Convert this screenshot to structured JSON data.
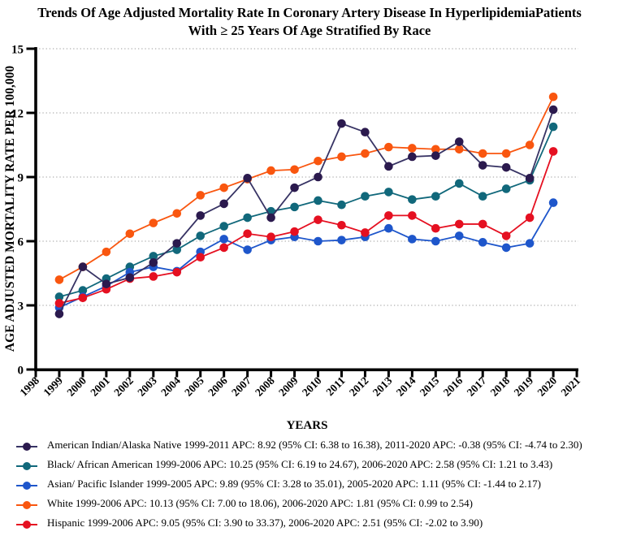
{
  "title": {
    "line1": "Trends Of Age Adjusted Mortality Rate In Coronary Artery Disease In HyperlipidemiaPatients",
    "line2": "With ≥ 25 Years Of Age Stratified By Race"
  },
  "axes": {
    "y_label": "AGE ADJUSTED MORTALITY RATE PER 100,000",
    "x_label": "YEARS",
    "y_ticks": [
      0,
      3,
      6,
      9,
      12,
      15
    ],
    "x_ticks": [
      1998,
      1999,
      2000,
      2001,
      2002,
      2003,
      2004,
      2005,
      2006,
      2007,
      2008,
      2009,
      2010,
      2011,
      2012,
      2013,
      2014,
      2015,
      2016,
      2017,
      2018,
      2019,
      2020,
      2021
    ]
  },
  "chart_data": {
    "type": "line",
    "title": "Trends Of Age Adjusted Mortality Rate In Coronary Artery Disease In HyperlipidemiaPatients With ≥ 25 Years Of Age Stratified By Race",
    "xlabel": "YEARS",
    "ylabel": "AGE ADJUSTED MORTALITY RATE PER 100,000",
    "ylim": [
      0,
      15
    ],
    "xlim": [
      1998,
      2021
    ],
    "gridlines": [
      3,
      6,
      9,
      12,
      15
    ],
    "grid": "dotted-horizontal",
    "legend_position": "bottom",
    "x": [
      1999,
      2000,
      2001,
      2002,
      2003,
      2004,
      2005,
      2006,
      2007,
      2008,
      2009,
      2010,
      2011,
      2012,
      2013,
      2014,
      2015,
      2016,
      2017,
      2018,
      2019,
      2020
    ],
    "z_order": [
      3,
      1,
      2,
      4,
      0
    ],
    "series": [
      {
        "id": "american-indian-alaska-native",
        "name": "American Indian/Alaska Native",
        "color": "#2b1a4e",
        "line_color": "#373364",
        "values": [
          2.6,
          4.8,
          4.0,
          4.3,
          5.0,
          5.9,
          7.2,
          7.75,
          8.95,
          7.1,
          8.5,
          9.0,
          11.5,
          11.1,
          9.5,
          9.95,
          10.0,
          10.65,
          9.55,
          9.45,
          8.95,
          12.15
        ]
      },
      {
        "id": "black-african-american",
        "name": "Black/ African American",
        "color": "#11687b",
        "line_color": "#11687b",
        "values": [
          3.4,
          3.7,
          4.25,
          4.8,
          5.3,
          5.6,
          6.25,
          6.7,
          7.1,
          7.4,
          7.6,
          7.9,
          7.7,
          8.1,
          8.3,
          7.95,
          8.1,
          8.7,
          8.1,
          8.45,
          8.85,
          11.35
        ]
      },
      {
        "id": "asian-pacific-islander",
        "name": "Asian/ Pacific Islander",
        "color": "#1e56cb",
        "line_color": "#1e56cb",
        "values": [
          2.9,
          3.4,
          3.9,
          4.55,
          4.8,
          4.6,
          5.5,
          6.1,
          5.6,
          6.05,
          6.2,
          6.0,
          6.05,
          6.2,
          6.6,
          6.1,
          6.0,
          6.25,
          5.95,
          5.7,
          5.9,
          7.8
        ]
      },
      {
        "id": "white",
        "name": "White",
        "color": "#f9560f",
        "line_color": "#f9560f",
        "values": [
          4.2,
          4.8,
          5.5,
          6.35,
          6.85,
          7.3,
          8.15,
          8.5,
          8.9,
          9.3,
          9.35,
          9.75,
          9.95,
          10.1,
          10.4,
          10.35,
          10.3,
          10.3,
          10.1,
          10.1,
          10.5,
          12.75
        ]
      },
      {
        "id": "hispanic",
        "name": "Hispanic",
        "color": "#e51021",
        "line_color": "#e51021",
        "values": [
          3.1,
          3.35,
          3.75,
          4.25,
          4.35,
          4.55,
          5.25,
          5.7,
          6.35,
          6.2,
          6.45,
          7.0,
          6.75,
          6.4,
          7.2,
          7.2,
          6.6,
          6.8,
          6.8,
          6.25,
          7.1,
          10.2
        ]
      }
    ]
  },
  "legend": {
    "items": [
      {
        "label": "American Indian/Alaska Native 1999-2011 APC: 8.92 (95% CI: 6.38 to 16.38), 2011-2020 APC: -0.38 (95% CI: -4.74 to 2.30)"
      },
      {
        "label": "Black/ African American 1999-2006 APC: 10.25 (95% CI: 6.19 to 24.67), 2006-2020 APC: 2.58 (95% CI: 1.21 to 3.43)"
      },
      {
        "label": "Asian/ Pacific Islander 1999-2005 APC: 9.89 (95% CI: 3.28 to 35.01), 2005-2020 APC: 1.11 (95% CI: -1.44 to 2.17)"
      },
      {
        "label": "White 1999-2006 APC: 10.13 (95% CI: 7.00 to 18.06), 2006-2020 APC: 1.81 (95% CI: 0.99 to 2.54)"
      },
      {
        "label": "Hispanic 1999-2006 APC: 9.05 (95% CI: 3.90 to 33.37), 2006-2020 APC: 2.51 (95% CI: -2.02 to 3.90)"
      }
    ]
  }
}
